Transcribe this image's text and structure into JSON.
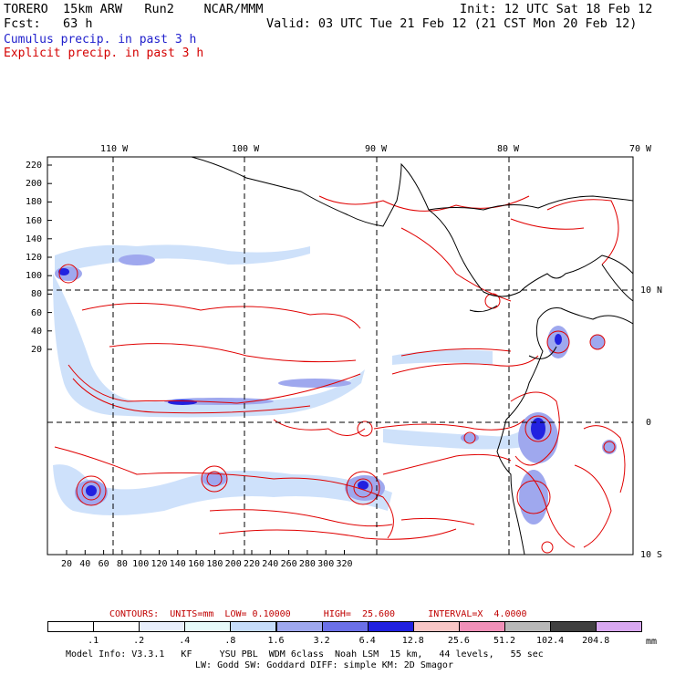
{
  "header": {
    "model": "TORERO  15km ARW   Run2    NCAR/MMM",
    "init": "Init: 12 UTC Sat 18 Feb 12",
    "fcst": "Fcst:   63 h",
    "valid": "Valid: 03 UTC Tue 21 Feb 12 (21 CST Mon 20 Feb 12)",
    "cumulus": "Cumulus precip. in past 3 h",
    "explicit": "Explicit precip. in past 3 h"
  },
  "map": {
    "top_lon_labels": [
      "110 W",
      "100 W",
      "90 W",
      "80 W",
      "70 W"
    ],
    "right_lat_labels": [
      "10 N",
      "0",
      "10 S"
    ],
    "y_ticks": [
      "220",
      "200",
      "180",
      "160",
      "140",
      "120",
      "100",
      "80",
      "60",
      "40",
      "20"
    ],
    "x_ticks": [
      "20",
      "40",
      "60",
      "80",
      "100",
      "120",
      "140",
      "160",
      "180",
      "200",
      "220",
      "240",
      "260",
      "280",
      "300",
      "320"
    ],
    "colors": {
      "cumulus": "#1f1fcc",
      "explicit": "#e00000",
      "coast": "#000000"
    }
  },
  "contours": {
    "label": "CONTOURS:  UNITS=mm  LOW= 0.10000      HIGH=  25.600      INTERVAL=X  4.0000"
  },
  "colorbar": {
    "labels": [
      ".1",
      ".2",
      ".4",
      ".8",
      "1.6",
      "3.2",
      "6.4",
      "12.8",
      "25.6",
      "51.2",
      "102.4",
      "204.8"
    ],
    "unit": "mm",
    "colors": [
      "#ffffff",
      "#ffffff",
      "#e8eefc",
      "#e6fafa",
      "#c6dcfa",
      "#9fa8ee",
      "#6b70e8",
      "#2121e0",
      "#f8c6c6",
      "#f090b8",
      "#b8b8b8",
      "#404040",
      "#d8a8f0"
    ]
  },
  "footer": {
    "line1": "Model Info: V3.3.1   KF     YSU PBL  WDM 6class  Noah LSM  15 km,   44 levels,   55 sec",
    "line2": "LW: Godd SW: Goddard DIFF: simple KM: 2D Smagor"
  }
}
